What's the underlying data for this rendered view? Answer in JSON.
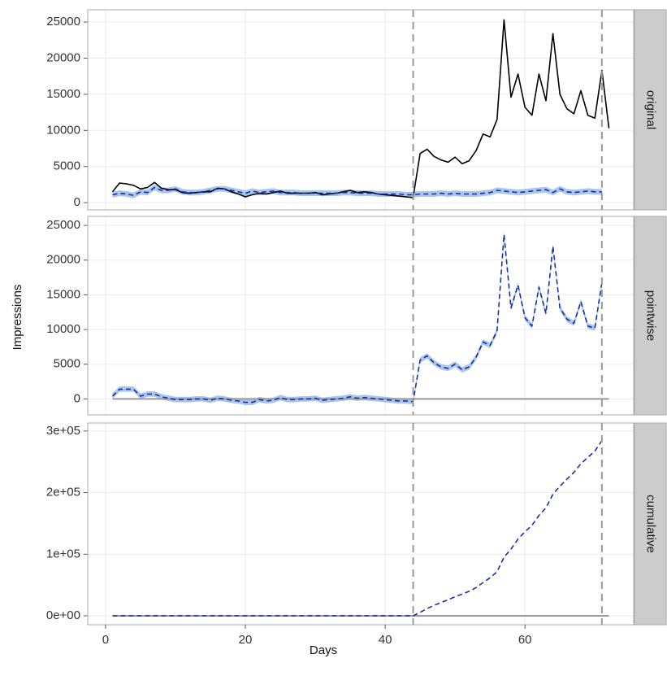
{
  "chart_data": {
    "type": "line",
    "xlabel": "Days",
    "ylabel": "Impressions",
    "x": [
      1,
      2,
      3,
      4,
      5,
      6,
      7,
      8,
      9,
      10,
      11,
      12,
      13,
      14,
      15,
      16,
      17,
      18,
      19,
      20,
      21,
      22,
      23,
      24,
      25,
      26,
      27,
      28,
      29,
      30,
      31,
      32,
      33,
      34,
      35,
      36,
      37,
      38,
      39,
      40,
      41,
      42,
      43,
      44,
      45,
      46,
      47,
      48,
      49,
      50,
      51,
      52,
      53,
      54,
      55,
      56,
      57,
      58,
      59,
      60,
      61,
      62,
      63,
      64,
      65,
      66,
      67,
      68,
      69,
      70,
      71,
      72
    ],
    "xlim": [
      -2.55,
      75.55
    ],
    "xticks": [
      0,
      20,
      40,
      60
    ],
    "grid": true,
    "vlines": [
      44,
      71
    ],
    "panels": [
      {
        "label": "original",
        "ylim": [
          -1000,
          26700
        ],
        "yticks": [
          0,
          5000,
          10000,
          15000,
          20000,
          25000
        ],
        "band": {
          "color": "#a9c6ec",
          "lower": [
            700,
            900,
            800,
            600,
            1100,
            1000,
            1700,
            1300,
            1300,
            1500,
            1100,
            1000,
            1000,
            1100,
            1300,
            1500,
            1500,
            1300,
            1100,
            900,
            1200,
            1000,
            1100,
            1200,
            1000,
            1000,
            1000,
            900,
            900,
            900,
            900,
            900,
            900,
            1000,
            1000,
            900,
            900,
            900,
            800,
            800,
            800,
            800,
            700,
            700,
            800,
            800,
            800,
            900,
            800,
            900,
            800,
            800,
            800,
            900,
            1000,
            1300,
            1200,
            1100,
            1000,
            1100,
            1200,
            1300,
            1400,
            1000,
            1500,
            1100,
            1000,
            1100,
            1200,
            1100,
            1100,
            null
          ],
          "upper": [
            1500,
            1700,
            1600,
            1400,
            1900,
            1800,
            2500,
            2100,
            2100,
            2300,
            1900,
            1800,
            1800,
            1900,
            2100,
            2300,
            2300,
            2100,
            1900,
            1700,
            2000,
            1800,
            1900,
            2000,
            1800,
            1800,
            1800,
            1700,
            1700,
            1700,
            1700,
            1700,
            1700,
            1800,
            1800,
            1700,
            1700,
            1700,
            1600,
            1600,
            1600,
            1600,
            1500,
            1500,
            1600,
            1600,
            1600,
            1700,
            1600,
            1700,
            1600,
            1600,
            1600,
            1700,
            1800,
            2100,
            2000,
            1900,
            1800,
            1900,
            2000,
            2100,
            2200,
            1800,
            2300,
            1900,
            1800,
            1900,
            2000,
            1900,
            1900,
            null
          ]
        },
        "series": [
          {
            "color": "#000000",
            "dashed": false,
            "values": [
              1500,
              2700,
              2600,
              2400,
              1900,
              2100,
              2800,
              2000,
              1800,
              1800,
              1400,
              1300,
              1400,
              1500,
              1500,
              2000,
              1900,
              1500,
              1200,
              800,
              1100,
              1300,
              1200,
              1400,
              1600,
              1300,
              1300,
              1300,
              1300,
              1400,
              1100,
              1200,
              1300,
              1500,
              1700,
              1400,
              1500,
              1400,
              1200,
              1100,
              1000,
              900,
              800,
              700,
              6800,
              7400,
              6400,
              5900,
              5600,
              6300,
              5400,
              5800,
              7200,
              9500,
              9100,
              11500,
              25300,
              14600,
              17800,
              13200,
              12100,
              17800,
              14100,
              23400,
              15000,
              13000,
              12300,
              15500,
              12100,
              11700,
              18300,
              10300
            ]
          },
          {
            "color": "#1a2fa0",
            "dashed": true,
            "values": [
              1100,
              1300,
              1200,
              1000,
              1500,
              1400,
              2100,
              1700,
              1700,
              1900,
              1500,
              1400,
              1400,
              1500,
              1700,
              1900,
              1900,
              1700,
              1500,
              1300,
              1600,
              1400,
              1500,
              1600,
              1400,
              1400,
              1400,
              1300,
              1300,
              1300,
              1300,
              1300,
              1300,
              1400,
              1400,
              1300,
              1300,
              1300,
              1200,
              1200,
              1200,
              1200,
              1100,
              1100,
              1200,
              1200,
              1200,
              1300,
              1200,
              1300,
              1200,
              1200,
              1200,
              1300,
              1400,
              1700,
              1600,
              1500,
              1400,
              1500,
              1600,
              1700,
              1800,
              1400,
              1900,
              1500,
              1400,
              1500,
              1600,
              1500,
              1500,
              null
            ]
          }
        ]
      },
      {
        "label": "pointwise",
        "ylim": [
          -2300,
          26300
        ],
        "yticks": [
          0,
          5000,
          10000,
          15000,
          20000,
          25000
        ],
        "reference_line": 0,
        "band": {
          "color": "#a9c6ec",
          "lower": [
            0,
            1000,
            1000,
            1000,
            0,
            300,
            300,
            -100,
            -300,
            -500,
            -500,
            -500,
            -400,
            -400,
            -600,
            -300,
            -400,
            -600,
            -700,
            -900,
            -900,
            -500,
            -700,
            -600,
            -200,
            -500,
            -500,
            -400,
            -400,
            -300,
            -600,
            -500,
            -400,
            -300,
            -100,
            -300,
            -200,
            -300,
            -400,
            -500,
            -600,
            -700,
            -700,
            -800,
            5200,
            5800,
            4800,
            4200,
            4000,
            4600,
            3800,
            4200,
            5600,
            7800,
            7300,
            9400,
            23300,
            12700,
            16000,
            11300,
            10100,
            15700,
            11900,
            21600,
            12700,
            11100,
            10500,
            13600,
            10100,
            9800,
            16400,
            null
          ],
          "upper": [
            800,
            1800,
            1800,
            1800,
            800,
            1100,
            1100,
            700,
            500,
            300,
            300,
            300,
            400,
            400,
            200,
            500,
            400,
            200,
            100,
            -100,
            -100,
            300,
            100,
            200,
            600,
            300,
            300,
            400,
            400,
            500,
            200,
            300,
            400,
            500,
            700,
            500,
            600,
            500,
            400,
            300,
            200,
            100,
            100,
            0,
            6000,
            6600,
            5600,
            5000,
            4800,
            5400,
            4600,
            5000,
            6400,
            8600,
            8100,
            10200,
            24100,
            13500,
            16800,
            12100,
            10900,
            16500,
            12700,
            22400,
            13500,
            11900,
            11300,
            14400,
            10900,
            10600,
            17200,
            null
          ]
        },
        "series": [
          {
            "color": "#1a2fa0",
            "dashed": true,
            "values": [
              400,
              1400,
              1400,
              1400,
              400,
              700,
              700,
              300,
              100,
              -100,
              -100,
              -100,
              0,
              0,
              -200,
              100,
              0,
              -200,
              -300,
              -500,
              -500,
              -100,
              -300,
              -200,
              200,
              -100,
              -100,
              0,
              0,
              100,
              -200,
              -100,
              0,
              100,
              300,
              100,
              200,
              100,
              0,
              -100,
              -200,
              -300,
              -300,
              -400,
              5600,
              6200,
              5200,
              4600,
              4400,
              5000,
              4200,
              4600,
              6000,
              8200,
              7700,
              9800,
              23700,
              13100,
              16400,
              11700,
              10500,
              16100,
              12300,
              22000,
              13100,
              11500,
              10900,
              14000,
              10500,
              10200,
              16800,
              null
            ]
          }
        ]
      },
      {
        "label": "cumulative",
        "ylim": [
          -14500,
          313000
        ],
        "reference_line": 0,
        "yticks": [
          {
            "value": 0,
            "label": "0e+00"
          },
          {
            "value": 100000,
            "label": "1e+05"
          },
          {
            "value": 200000,
            "label": "2e+05"
          },
          {
            "value": 300000,
            "label": "3e+05"
          }
        ],
        "series": [
          {
            "color": "#1a2fa0",
            "dashed": true,
            "values": [
              0,
              0,
              0,
              0,
              0,
              0,
              0,
              0,
              0,
              0,
              0,
              0,
              0,
              0,
              0,
              0,
              0,
              0,
              0,
              0,
              0,
              0,
              0,
              0,
              0,
              0,
              0,
              0,
              0,
              0,
              0,
              0,
              0,
              0,
              0,
              0,
              0,
              0,
              0,
              0,
              0,
              0,
              0,
              0,
              5600,
              11800,
              17000,
              21600,
              26000,
              31000,
              35200,
              39800,
              45800,
              54000,
              61700,
              71500,
              95200,
              108300,
              124700,
              136400,
              146900,
              163000,
              175300,
              197300,
              210400,
              221900,
              232800,
              246800,
              257300,
              267500,
              284300,
              null
            ]
          }
        ]
      }
    ]
  }
}
